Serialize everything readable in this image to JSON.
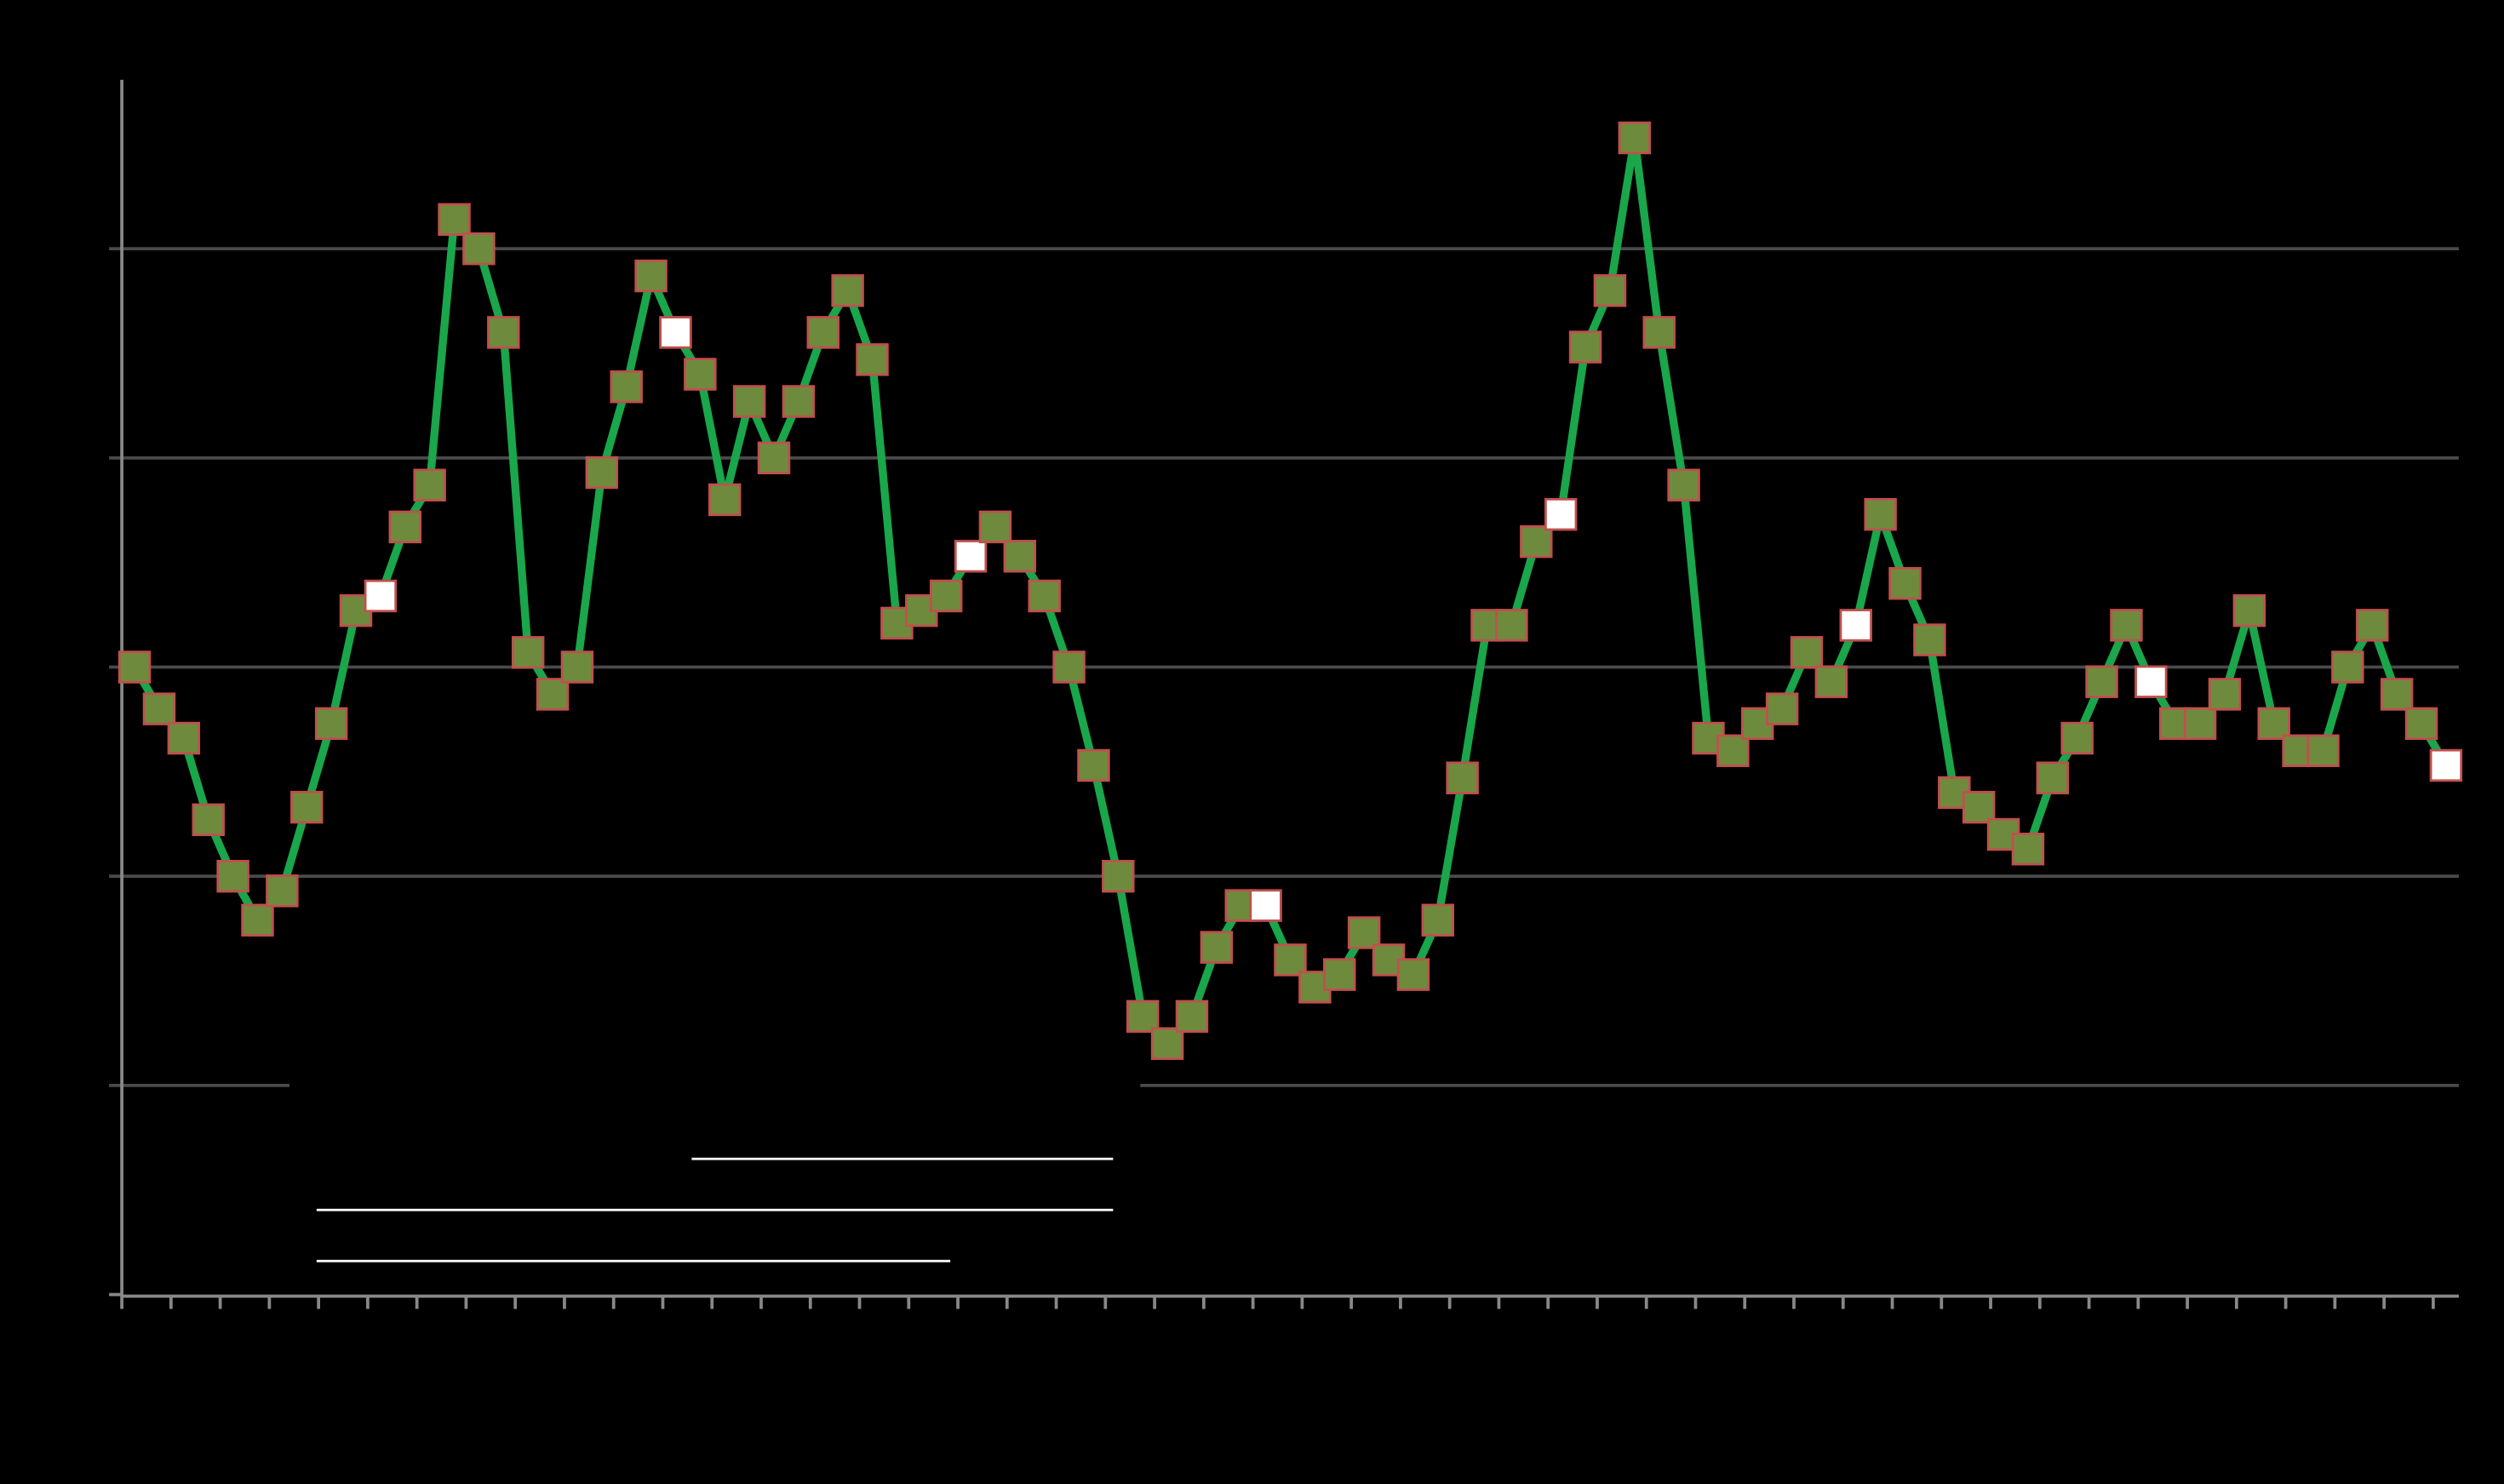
{
  "chart_data": {
    "type": "line",
    "categories": [
      null,
      null,
      null,
      null,
      null,
      null,
      null,
      null,
      null,
      null,
      null,
      null,
      null,
      null,
      null,
      null,
      null,
      null,
      null,
      null,
      null,
      null,
      null,
      null,
      null,
      null,
      null,
      null,
      null,
      null,
      null,
      null,
      null,
      null,
      null,
      null,
      null,
      null,
      null,
      null,
      null,
      null,
      null,
      null,
      null,
      null,
      null,
      null,
      null,
      null,
      null,
      null,
      null,
      null,
      null,
      null,
      null,
      null,
      null,
      null,
      null,
      null,
      null,
      null,
      null,
      null,
      null,
      null,
      null,
      null,
      null,
      null,
      null,
      null,
      null,
      null,
      null,
      null,
      null,
      null,
      null,
      null,
      null,
      null,
      null,
      null,
      null,
      null,
      null,
      null,
      null,
      null,
      null,
      null,
      null
    ],
    "series": [
      {
        "color": "#1aa64a",
        "marker_color": "#6e8b3d",
        "marker_edge": "#c0504d",
        "values": [
          3.0,
          2.8,
          2.66,
          2.27,
          2.0,
          1.79,
          1.93,
          2.33,
          2.73,
          3.27,
          3.34,
          3.67,
          3.87,
          5.14,
          5.0,
          4.6,
          3.07,
          2.87,
          3.0,
          3.93,
          4.34,
          4.87,
          4.6,
          4.4,
          3.8,
          4.27,
          4.0,
          4.27,
          4.6,
          4.8,
          4.47,
          3.21,
          3.27,
          3.34,
          3.53,
          3.67,
          3.53,
          3.34,
          3.0,
          2.53,
          2.0,
          1.33,
          1.2,
          1.33,
          1.66,
          1.86,
          1.86,
          1.6,
          1.47,
          1.53,
          1.73,
          1.6,
          1.53,
          1.79,
          2.47,
          3.2,
          3.2,
          3.6,
          3.73,
          4.53,
          4.8,
          5.53,
          4.6,
          3.87,
          2.66,
          2.6,
          2.73,
          2.8,
          3.07,
          2.93,
          3.2,
          3.73,
          3.4,
          3.13,
          2.4,
          2.33,
          2.2,
          2.13,
          2.47,
          2.66,
          2.93,
          3.2,
          2.93,
          2.73,
          2.73,
          2.87,
          3.27,
          2.73,
          2.6,
          2.6,
          3.0,
          3.2,
          2.87,
          2.73,
          2.53
        ],
        "highlight": {
          "color": "#ffffff",
          "indices": [
            10,
            22,
            34,
            46,
            58,
            70,
            82,
            94
          ]
        }
      }
    ],
    "ylim": [
      0,
      5.8
    ],
    "yticks": [
      0,
      1,
      2,
      3,
      4,
      5
    ],
    "grid": true
  }
}
